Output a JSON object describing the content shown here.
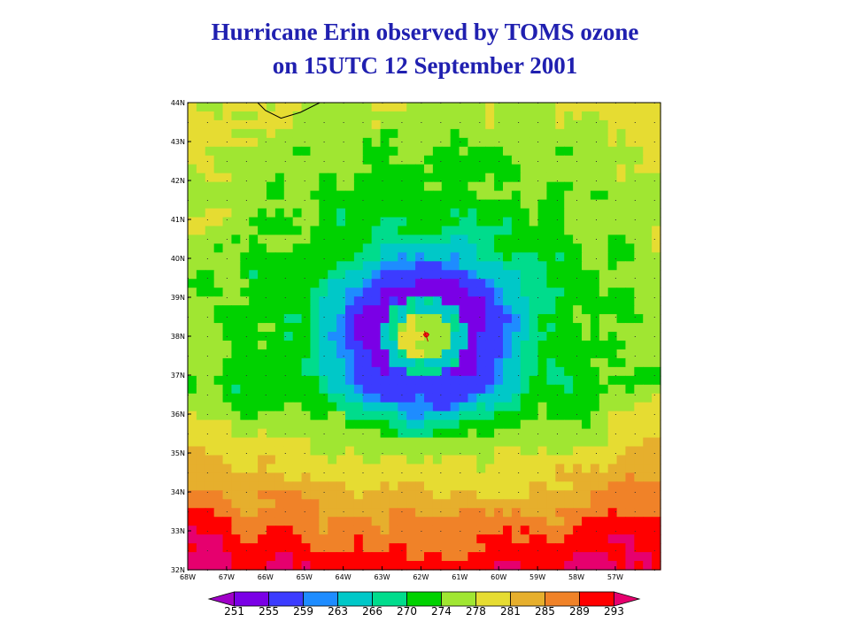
{
  "title_line1": "Hurricane Erin observed by TOMS ozone",
  "title_line2": "on 15UTC 12 September 2001",
  "map": {
    "lat_labels": [
      "44N",
      "43N",
      "42N",
      "41N",
      "40N",
      "39N",
      "38N",
      "37N",
      "36N",
      "35N",
      "34N",
      "33N",
      "32N"
    ],
    "lon_labels": [
      "68W",
      "67W",
      "66W",
      "65W",
      "64W",
      "63W",
      "62W",
      "61W",
      "60W",
      "59W",
      "58W",
      "57W"
    ],
    "lat_range": [
      32,
      44
    ],
    "lon_range": [
      -68,
      -56
    ],
    "hurricane_center": {
      "lat": 38.0,
      "lon": -62.0
    }
  },
  "colorbar": {
    "labels": [
      "251",
      "255",
      "259",
      "263",
      "266",
      "270",
      "274",
      "278",
      "281",
      "285",
      "289",
      "293"
    ],
    "colors": [
      "#a000c8",
      "#7a00e6",
      "#3c3cff",
      "#1e8cff",
      "#00c8c8",
      "#00dc8c",
      "#00d200",
      "#a0e632",
      "#e6dc32",
      "#e6af2d",
      "#f08228",
      "#ff0000",
      "#e6006e"
    ]
  }
}
